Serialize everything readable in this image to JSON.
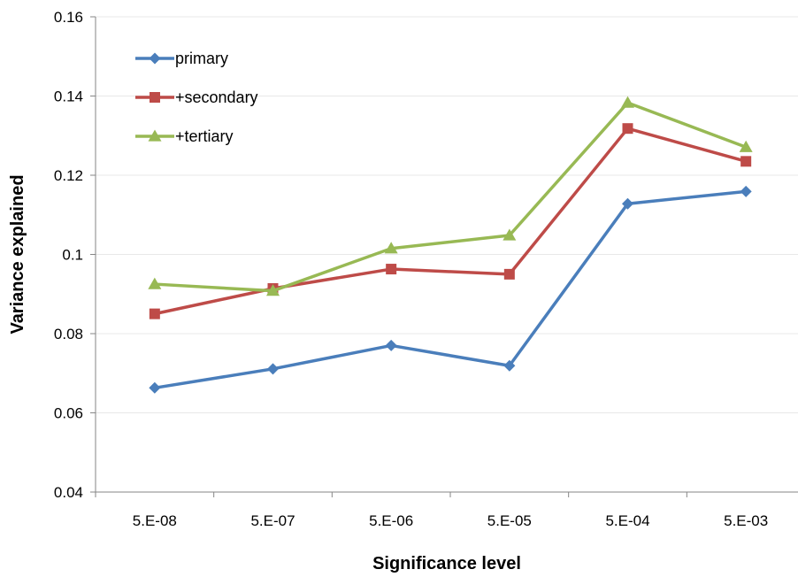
{
  "chart_data": {
    "type": "line",
    "title": "",
    "xlabel": "Significance level",
    "ylabel": "Variance explained",
    "categories": [
      "5.E-08",
      "5.E-07",
      "5.E-06",
      "5.E-05",
      "5.E-04",
      "5.E-03"
    ],
    "ylim": [
      0.04,
      0.16
    ],
    "yticks": [
      0.04,
      0.06,
      0.08,
      0.1,
      0.12,
      0.14,
      0.16
    ],
    "ytick_labels": [
      "0.04",
      "0.06",
      "0.08",
      "0.1",
      "0.12",
      "0.14",
      "0.16"
    ],
    "grid": true,
    "legend_position": "top-left",
    "series": [
      {
        "name": "primary",
        "color": "#4a7ebb",
        "marker": "diamond",
        "values": [
          0.0663,
          0.0711,
          0.077,
          0.0719,
          0.1128,
          0.1159
        ]
      },
      {
        "name": "+secondary",
        "color": "#be4b48",
        "marker": "square",
        "values": [
          0.085,
          0.0914,
          0.0963,
          0.095,
          0.1318,
          0.1235
        ]
      },
      {
        "name": "+tertiary",
        "color": "#98b954",
        "marker": "triangle",
        "values": [
          0.0925,
          0.0908,
          0.1015,
          0.1048,
          0.1383,
          0.1271
        ]
      }
    ]
  }
}
